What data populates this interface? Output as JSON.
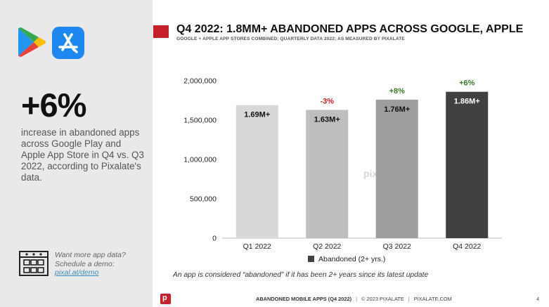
{
  "sidebar": {
    "stat": "+6%",
    "stat_description": "increase in abandoned apps across Google Play and Apple App Store in Q4 vs. Q3 2022, according to Pixalate's data.",
    "cta_line1": "Want more app data?",
    "cta_line2": "Schedule a demo:",
    "cta_link": "pixal.at/demo"
  },
  "header": {
    "title": "Q4 2022: 1.8MM+ ABANDONED APPS ACROSS GOOGLE, APPLE",
    "subtitle": "GOOGLE + APPLE APP STORES COMBINED; QUARTERLY DATA 2022; AS MEASURED BY PIXALATE"
  },
  "footnote": "An app is considered “abandoned” if it has been 2+ years since its latest update",
  "footer": {
    "report": "ABANDONED MOBILE APPS (Q4 2022)",
    "copyright": "© 2023 PIXALATE",
    "site": "PIXALATE.COM",
    "page": "4"
  },
  "colors": {
    "accent_red": "#c8202a",
    "pct_negative": "#c8202a",
    "pct_positive": "#3b7a2a",
    "bars": [
      "#d8d8d8",
      "#bebebe",
      "#9e9e9e",
      "#404040"
    ]
  },
  "chart_data": {
    "type": "bar",
    "categories": [
      "Q1 2022",
      "Q2 2022",
      "Q3 2022",
      "Q4 2022"
    ],
    "series": [
      {
        "name": "Abandoned (2+ yrs.)",
        "values": [
          1690000,
          1630000,
          1760000,
          1860000
        ]
      }
    ],
    "data_labels": [
      "1.69M+",
      "1.63M+",
      "1.76M+",
      "1.86M+"
    ],
    "change_labels": [
      "",
      "-3%",
      "+8%",
      "+6%"
    ],
    "y_ticks": [
      0,
      500000,
      1000000,
      1500000,
      2000000
    ],
    "y_tick_labels": [
      "0",
      "500,000",
      "1,000,000",
      "1,500,000",
      "2,000,000"
    ],
    "ylim": [
      0,
      2000000
    ],
    "watermark": "pixalate",
    "legend": "bottom-center"
  }
}
